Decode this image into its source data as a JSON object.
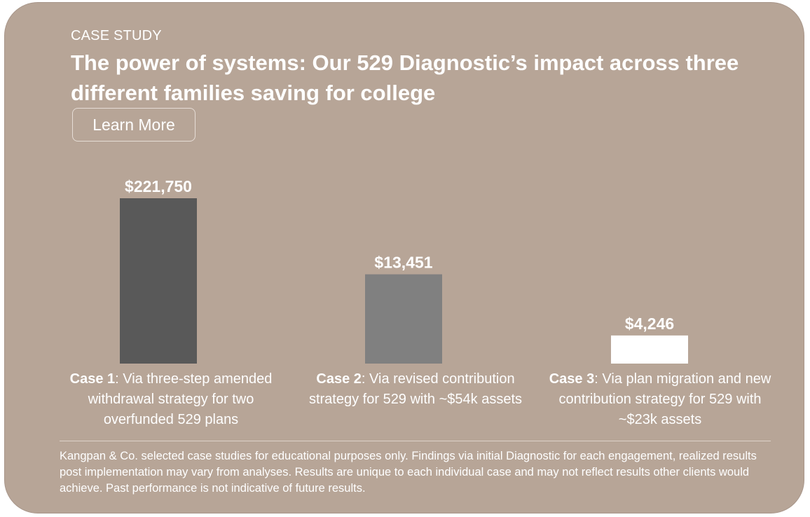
{
  "colors": {
    "card_background": "#b7a597",
    "bar_1": "#595959",
    "bar_2": "#808080",
    "bar_3": "#ffffff",
    "text": "#ffffff"
  },
  "header": {
    "eyebrow": "CASE STUDY",
    "title": "The power of systems: Our 529 Diagnostic’s impact across three different families saving for college",
    "learn_more_label": "Learn More"
  },
  "chart_data": {
    "type": "bar",
    "categories": [
      "Case 1",
      "Case 2",
      "Case 3"
    ],
    "values": [
      221750,
      13451,
      4246
    ],
    "value_labels": [
      "$221,750",
      "$13,451",
      "$4,246"
    ],
    "axis_scale": "non-linear (bars not drawn to scale)",
    "display_values": [
      1.0,
      0.54,
      0.17
    ],
    "case_descriptions": [
      "Via three-step amended withdrawal strategy for two overfunded 529 plans",
      "Via revised contribution strategy for 529 with ~$54k assets",
      "Via plan migration and new contribution strategy for 529 with ~$23k assets"
    ],
    "grid": false,
    "legend": "none",
    "xlabel": "",
    "ylabel": ""
  },
  "footer": {
    "disclaimer": "Kangpan & Co. selected case studies for educational purposes only. Findings via initial Diagnostic for each engagement, realized results post implementation may vary from analyses. Results are unique to each individual case and may not reflect results other clients would achieve. Past performance is not indicative of future results."
  }
}
